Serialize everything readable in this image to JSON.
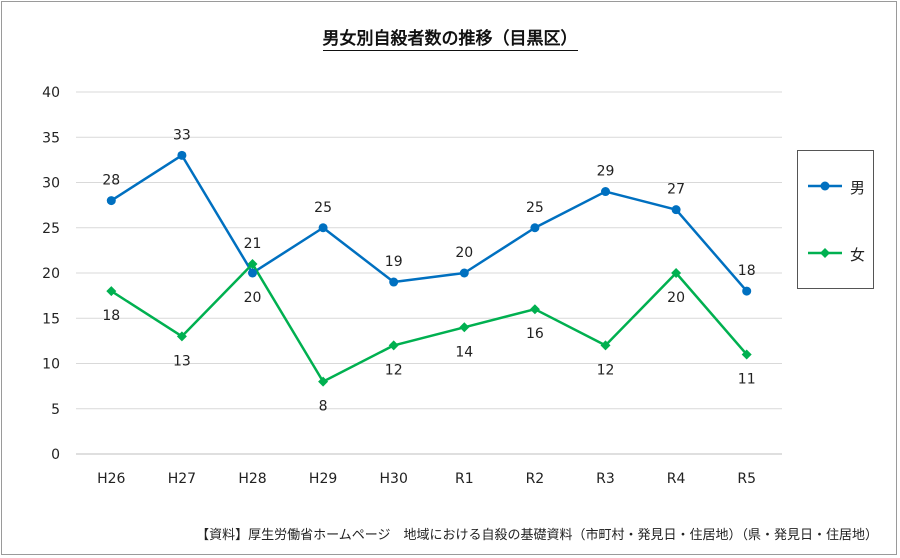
{
  "chart_data": {
    "type": "line",
    "title": "男女別自殺者数の推移（目黒区）",
    "categories": [
      "H26",
      "H27",
      "H28",
      "H29",
      "H30",
      "R1",
      "R2",
      "R3",
      "R4",
      "R5"
    ],
    "ylim": [
      0,
      40
    ],
    "yticks": [
      0,
      5,
      10,
      15,
      20,
      25,
      30,
      35,
      40
    ],
    "grid": true,
    "legend_position": "right",
    "series": [
      {
        "name": "男",
        "color": "#0070C0",
        "marker": "circle",
        "values": [
          28,
          33,
          20,
          25,
          19,
          20,
          25,
          29,
          27,
          18
        ]
      },
      {
        "name": "女",
        "color": "#00B050",
        "marker": "diamond",
        "values": [
          18,
          13,
          21,
          8,
          12,
          14,
          16,
          12,
          20,
          11
        ]
      }
    ]
  },
  "source_note": "【資料】厚生労働省ホームページ　地域における自殺の基礎資料（市町村・発見日・住居地）（県・発見日・住居地）"
}
